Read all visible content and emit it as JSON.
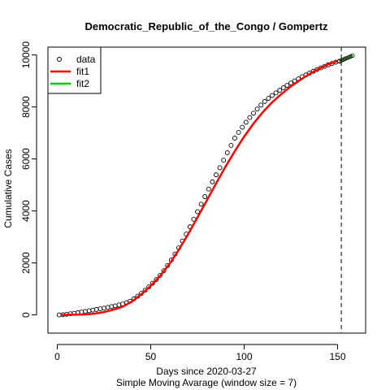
{
  "chart_data": {
    "type": "line",
    "title": "Democratic_Republic_of_the_Congo / Gompertz",
    "xlabel": "Days since 2020-03-27",
    "xlabel2": "Simple Moving Avarage (window size = 7)",
    "ylabel": "Cumulative Cases",
    "xlim": [
      -5,
      165
    ],
    "ylim": [
      -700,
      10300
    ],
    "x_ticks": [
      0,
      50,
      100,
      150
    ],
    "y_ticks": [
      0,
      2000,
      4000,
      6000,
      8000,
      10000
    ],
    "vline_x": 152,
    "grid": false,
    "legend_position": "top-left",
    "legend": [
      {
        "label": "data",
        "style": "circle-open",
        "color": "#000000"
      },
      {
        "label": "fit1",
        "style": "line",
        "color": "#ff0000"
      },
      {
        "label": "fit2",
        "style": "line",
        "color": "#00cd00"
      }
    ],
    "series": [
      {
        "name": "data",
        "style": "points",
        "color": "#000000",
        "x": [
          1,
          3,
          5,
          7,
          9,
          11,
          13,
          15,
          17,
          19,
          21,
          23,
          25,
          27,
          29,
          31,
          33,
          35,
          37,
          39,
          41,
          43,
          45,
          47,
          49,
          51,
          53,
          55,
          57,
          59,
          61,
          63,
          65,
          67,
          69,
          71,
          73,
          75,
          77,
          79,
          81,
          83,
          85,
          87,
          89,
          91,
          93,
          95,
          97,
          99,
          101,
          103,
          105,
          107,
          109,
          111,
          113,
          115,
          117,
          119,
          121,
          123,
          125,
          127,
          129,
          131,
          133,
          135,
          137,
          139,
          141,
          143,
          145,
          147,
          149,
          151
        ],
        "y": [
          0,
          10,
          25,
          45,
          65,
          85,
          110,
          135,
          160,
          185,
          210,
          235,
          260,
          290,
          320,
          350,
          385,
          420,
          470,
          530,
          620,
          720,
          830,
          950,
          1080,
          1220,
          1360,
          1520,
          1700,
          1900,
          2110,
          2340,
          2580,
          2840,
          3110,
          3390,
          3680,
          3970,
          4260,
          4550,
          4840,
          5120,
          5390,
          5660,
          5950,
          6240,
          6520,
          6800,
          7020,
          7220,
          7410,
          7590,
          7760,
          7920,
          8070,
          8210,
          8330,
          8440,
          8540,
          8640,
          8740,
          8830,
          8920,
          9000,
          9080,
          9160,
          9230,
          9300,
          9370,
          9440,
          9500,
          9560,
          9620,
          9670,
          9720,
          9760
        ]
      },
      {
        "name": "fit1",
        "style": "line",
        "color": "#ff0000",
        "x": [
          2,
          5,
          10,
          15,
          20,
          25,
          30,
          35,
          40,
          45,
          50,
          55,
          60,
          65,
          70,
          75,
          80,
          85,
          90,
          95,
          100,
          105,
          110,
          115,
          120,
          125,
          130,
          135,
          140,
          145,
          150
        ],
        "y": [
          0,
          5,
          10,
          20,
          50,
          110,
          200,
          320,
          520,
          800,
          1120,
          1500,
          1960,
          2500,
          3100,
          3750,
          4400,
          5060,
          5700,
          6300,
          6860,
          7360,
          7800,
          8180,
          8500,
          8790,
          9040,
          9270,
          9470,
          9640,
          9760
        ]
      },
      {
        "name": "fit2",
        "style": "points-line",
        "color": "#00cd00",
        "x": [
          151,
          152,
          153,
          154,
          155,
          156,
          157,
          158
        ],
        "y": [
          9760,
          9790,
          9820,
          9850,
          9880,
          9910,
          9940,
          9970
        ]
      }
    ]
  }
}
